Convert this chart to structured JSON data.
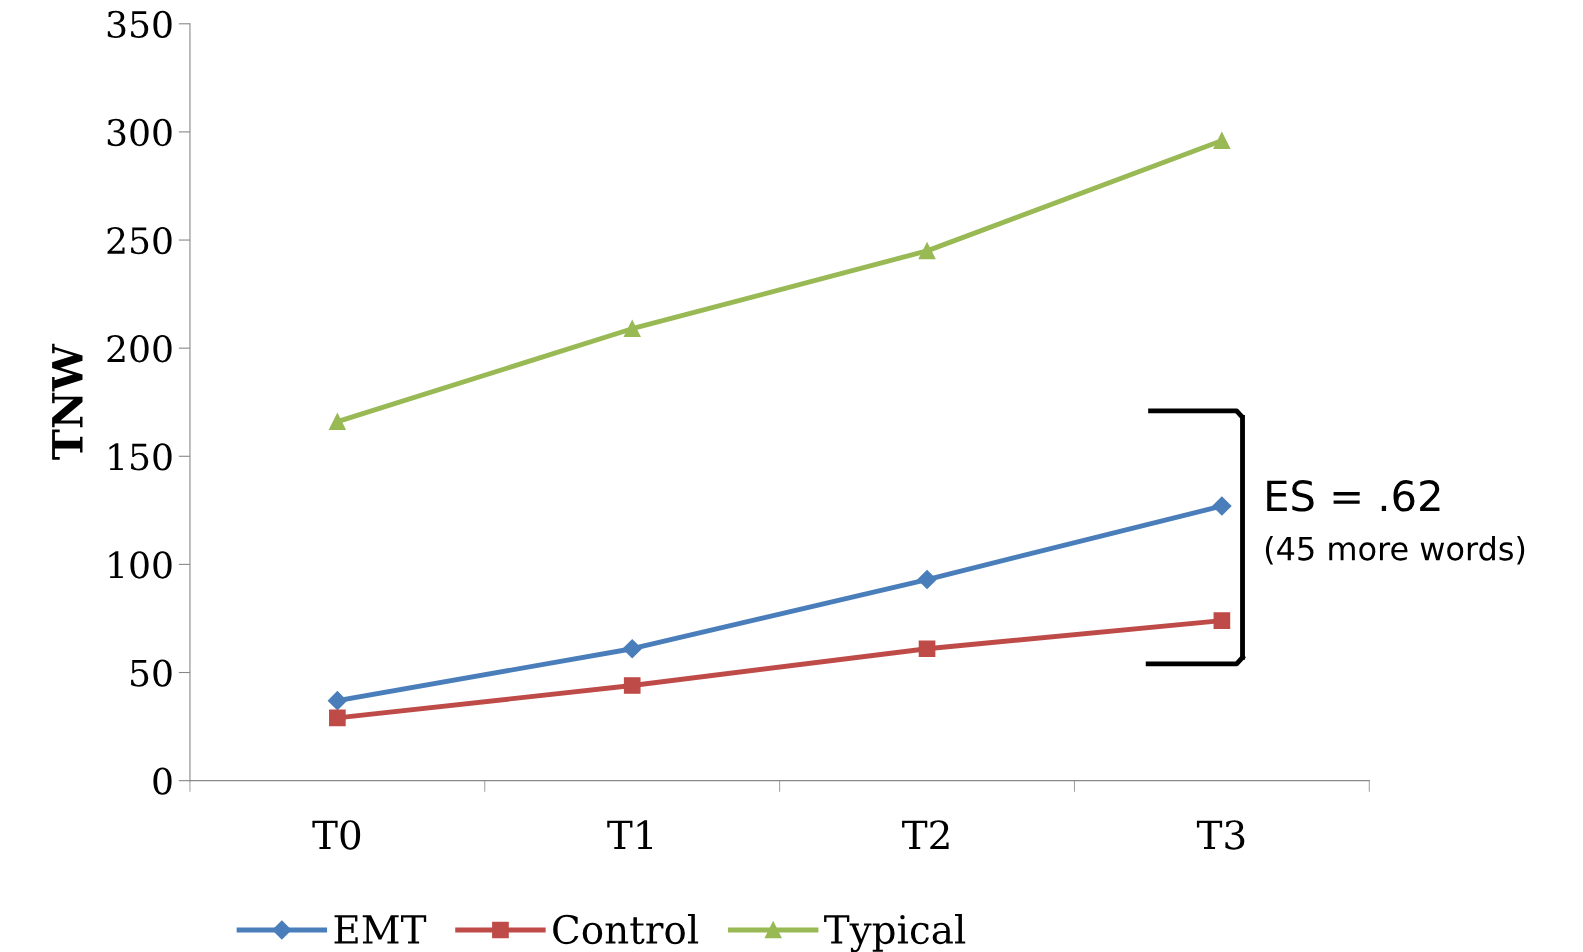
{
  "chart_data": {
    "type": "line",
    "ylabel": "TNW",
    "categories": [
      "T0",
      "T1",
      "T2",
      "T3"
    ],
    "series": [
      {
        "name": "EMT",
        "color": "#4a7ebb",
        "marker": "diamond",
        "values": [
          37,
          61,
          93,
          127
        ]
      },
      {
        "name": "Control",
        "color": "#be4b48",
        "marker": "square",
        "values": [
          29,
          44,
          61,
          74
        ]
      },
      {
        "name": "Typical",
        "color": "#98b954",
        "marker": "triangle",
        "values": [
          166,
          209,
          245,
          296
        ]
      }
    ],
    "ylim": [
      0,
      350
    ],
    "yticks": [
      0,
      50,
      100,
      150,
      200,
      250,
      300,
      350
    ],
    "grid": false,
    "legend": "bottom",
    "line_style": "solid",
    "annotations": [
      "ES = .62",
      "(45 more words)"
    ]
  }
}
